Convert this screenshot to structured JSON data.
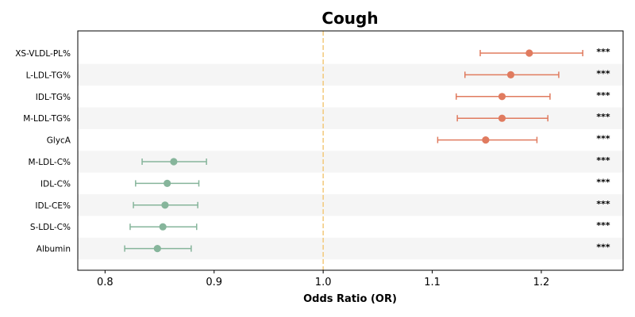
{
  "chart_data": {
    "type": "forest",
    "title": "Cough",
    "xlabel": "Odds Ratio (OR)",
    "xlim": [
      0.775,
      1.275
    ],
    "xticks": [
      0.8,
      0.9,
      1.0,
      1.1,
      1.2
    ],
    "xtick_labels": [
      "0.8",
      "0.9",
      "1.0",
      "1.1",
      "1.2"
    ],
    "reference_line": 1.0,
    "colors": {
      "positive": "#e07b5f",
      "negative": "#86b59b",
      "reference": "#f2c97a",
      "band": "#f5f5f5"
    },
    "rows": [
      {
        "label": "XS-VLDL-PL%",
        "or": 1.189,
        "lo": 1.144,
        "hi": 1.238,
        "sig": "***"
      },
      {
        "label": "L-LDL-TG%",
        "or": 1.172,
        "lo": 1.13,
        "hi": 1.216,
        "sig": "***"
      },
      {
        "label": "IDL-TG%",
        "or": 1.164,
        "lo": 1.122,
        "hi": 1.208,
        "sig": "***"
      },
      {
        "label": "M-LDL-TG%",
        "or": 1.164,
        "lo": 1.123,
        "hi": 1.206,
        "sig": "***"
      },
      {
        "label": "GlycA",
        "or": 1.149,
        "lo": 1.105,
        "hi": 1.196,
        "sig": "***"
      },
      {
        "label": "M-LDL-C%",
        "or": 0.863,
        "lo": 0.834,
        "hi": 0.893,
        "sig": "***"
      },
      {
        "label": "IDL-C%",
        "or": 0.857,
        "lo": 0.828,
        "hi": 0.886,
        "sig": "***"
      },
      {
        "label": "IDL-CE%",
        "or": 0.855,
        "lo": 0.826,
        "hi": 0.885,
        "sig": "***"
      },
      {
        "label": "S-LDL-C%",
        "or": 0.853,
        "lo": 0.823,
        "hi": 0.884,
        "sig": "***"
      },
      {
        "label": "Albumin",
        "or": 0.848,
        "lo": 0.818,
        "hi": 0.879,
        "sig": "***"
      }
    ]
  }
}
